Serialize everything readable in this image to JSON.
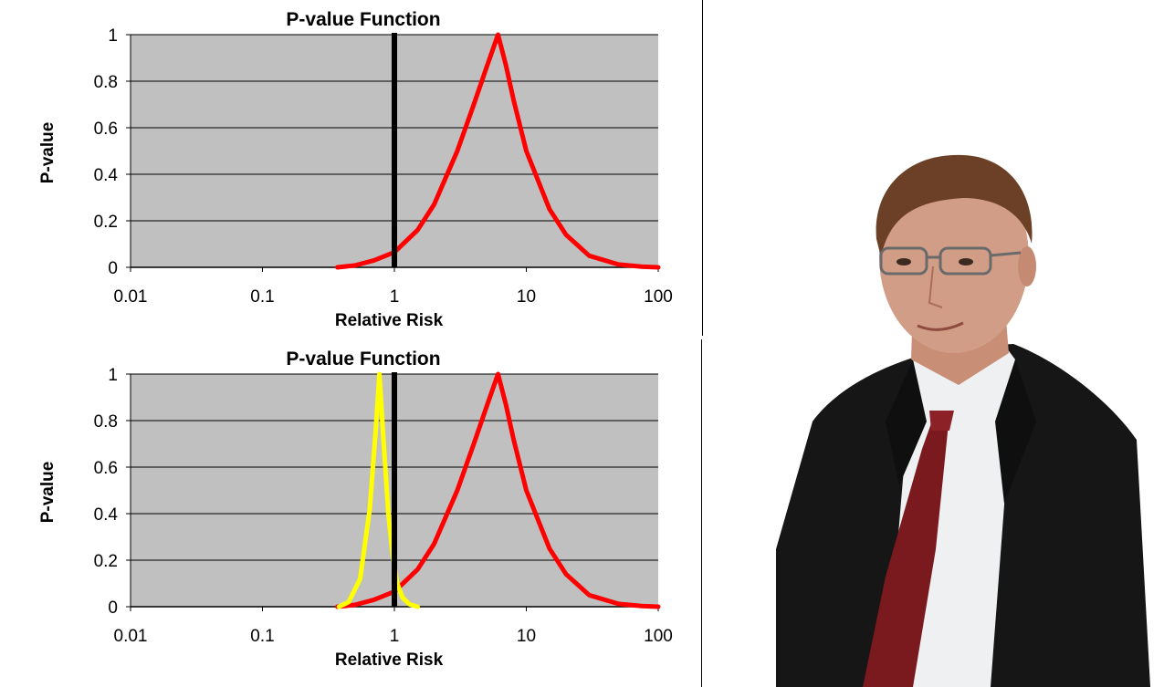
{
  "chart_data": [
    {
      "type": "line",
      "title": "P-value Function",
      "xlabel": "Relative Risk",
      "ylabel": "P-value",
      "xscale": "log",
      "xlim": [
        0.01,
        100
      ],
      "ylim": [
        0,
        1
      ],
      "x_ticks": [
        "0.01",
        "0.1",
        "1",
        "10",
        "100"
      ],
      "y_ticks": [
        "0",
        "0.2",
        "0.4",
        "0.6",
        "0.8",
        "1"
      ],
      "grid": "horizontal",
      "reference_line": {
        "x": 1,
        "color": "#000000"
      },
      "series": [
        {
          "color": "#ff0000",
          "points": [
            [
              0.37,
              0.0
            ],
            [
              0.5,
              0.008
            ],
            [
              0.7,
              0.03
            ],
            [
              1.0,
              0.065
            ],
            [
              1.5,
              0.16
            ],
            [
              2.0,
              0.27
            ],
            [
              3.0,
              0.5
            ],
            [
              4.0,
              0.7
            ],
            [
              5.0,
              0.86
            ],
            [
              6.1,
              1.0
            ],
            [
              7.0,
              0.87
            ],
            [
              8.0,
              0.72
            ],
            [
              10.0,
              0.5
            ],
            [
              15.0,
              0.25
            ],
            [
              20.0,
              0.14
            ],
            [
              30.0,
              0.05
            ],
            [
              50.0,
              0.012
            ],
            [
              75.0,
              0.003
            ],
            [
              100.0,
              0.0
            ]
          ]
        }
      ]
    },
    {
      "type": "line",
      "title": "P-value Function",
      "xlabel": "Relative Risk",
      "ylabel": "P-value",
      "xscale": "log",
      "xlim": [
        0.01,
        100
      ],
      "ylim": [
        0,
        1
      ],
      "x_ticks": [
        "0.01",
        "0.1",
        "1",
        "10",
        "100"
      ],
      "y_ticks": [
        "0",
        "0.2",
        "0.4",
        "0.6",
        "0.8",
        "1"
      ],
      "grid": "horizontal",
      "reference_line": {
        "x": 1,
        "color": "#000000"
      },
      "series": [
        {
          "color": "#ff0000",
          "points": [
            [
              0.37,
              0.0
            ],
            [
              0.5,
              0.008
            ],
            [
              0.7,
              0.03
            ],
            [
              1.0,
              0.065
            ],
            [
              1.5,
              0.16
            ],
            [
              2.0,
              0.27
            ],
            [
              3.0,
              0.5
            ],
            [
              4.0,
              0.7
            ],
            [
              5.0,
              0.86
            ],
            [
              6.1,
              1.0
            ],
            [
              7.0,
              0.87
            ],
            [
              8.0,
              0.72
            ],
            [
              10.0,
              0.5
            ],
            [
              15.0,
              0.25
            ],
            [
              20.0,
              0.14
            ],
            [
              30.0,
              0.05
            ],
            [
              50.0,
              0.012
            ],
            [
              75.0,
              0.003
            ],
            [
              100.0,
              0.0
            ]
          ]
        },
        {
          "color": "#ffff00",
          "points": [
            [
              0.38,
              0.0
            ],
            [
              0.45,
              0.02
            ],
            [
              0.55,
              0.12
            ],
            [
              0.65,
              0.42
            ],
            [
              0.72,
              0.75
            ],
            [
              0.77,
              1.0
            ],
            [
              0.82,
              0.75
            ],
            [
              0.9,
              0.4
            ],
            [
              0.97,
              0.22
            ],
            [
              1.05,
              0.1
            ],
            [
              1.15,
              0.04
            ],
            [
              1.3,
              0.01
            ],
            [
              1.5,
              0.0
            ]
          ]
        }
      ]
    }
  ]
}
